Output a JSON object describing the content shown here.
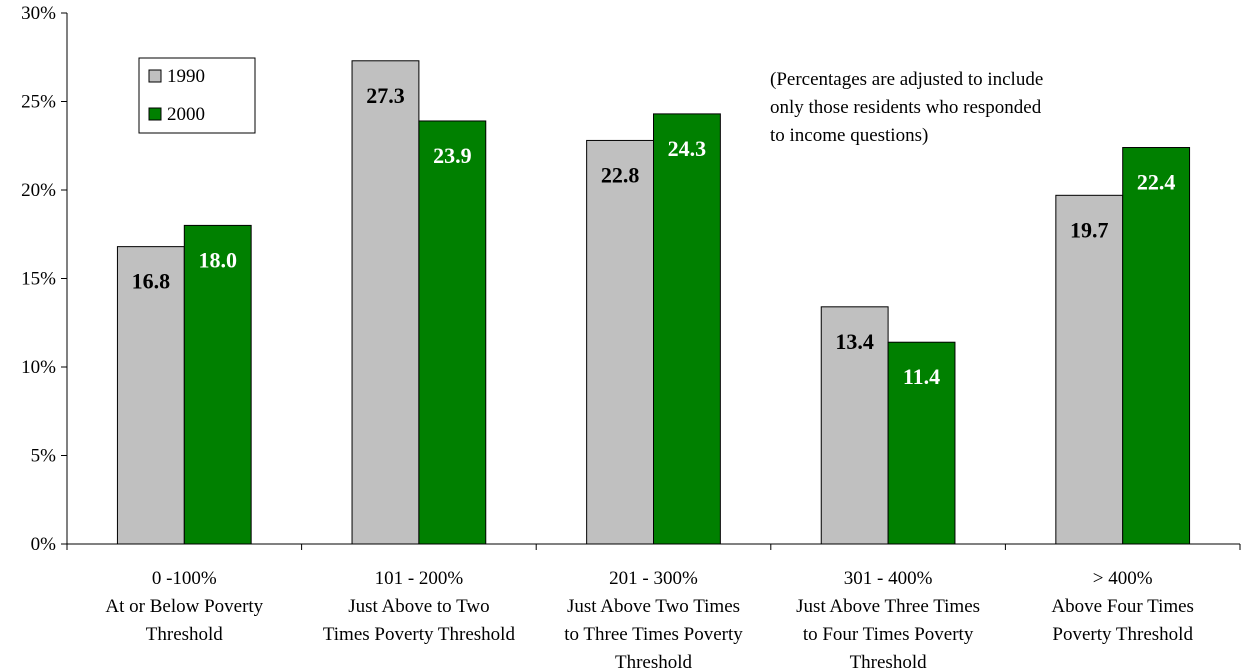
{
  "chart_data": {
    "type": "bar",
    "categories": [
      [
        "0 -100%",
        "At or Below Poverty",
        "Threshold"
      ],
      [
        "101 - 200%",
        "Just Above to Two",
        "Times Poverty Threshold"
      ],
      [
        "201 - 300%",
        "Just Above Two Times",
        "to Three Times Poverty",
        "Threshold"
      ],
      [
        "301 - 400%",
        "Just Above Three Times",
        "to Four Times Poverty",
        "Threshold"
      ],
      [
        "> 400%",
        "Above Four Times",
        "Poverty Threshold"
      ]
    ],
    "series": [
      {
        "name": "1990",
        "values": [
          16.8,
          27.3,
          22.8,
          13.4,
          19.7
        ],
        "color": "#c0c0c0",
        "label_color": "#000000"
      },
      {
        "name": "2000",
        "values": [
          18.0,
          23.9,
          24.3,
          11.4,
          22.4
        ],
        "color": "#008000",
        "label_color": "#ffffff"
      }
    ],
    "y_ticks": [
      "0%",
      "5%",
      "10%",
      "15%",
      "20%",
      "25%",
      "30%"
    ],
    "ylim": [
      0,
      30
    ],
    "legend": "top-left",
    "annotation": [
      "(Percentages are adjusted to include",
      "only those residents who responded",
      "to income questions)"
    ],
    "grid": false
  }
}
